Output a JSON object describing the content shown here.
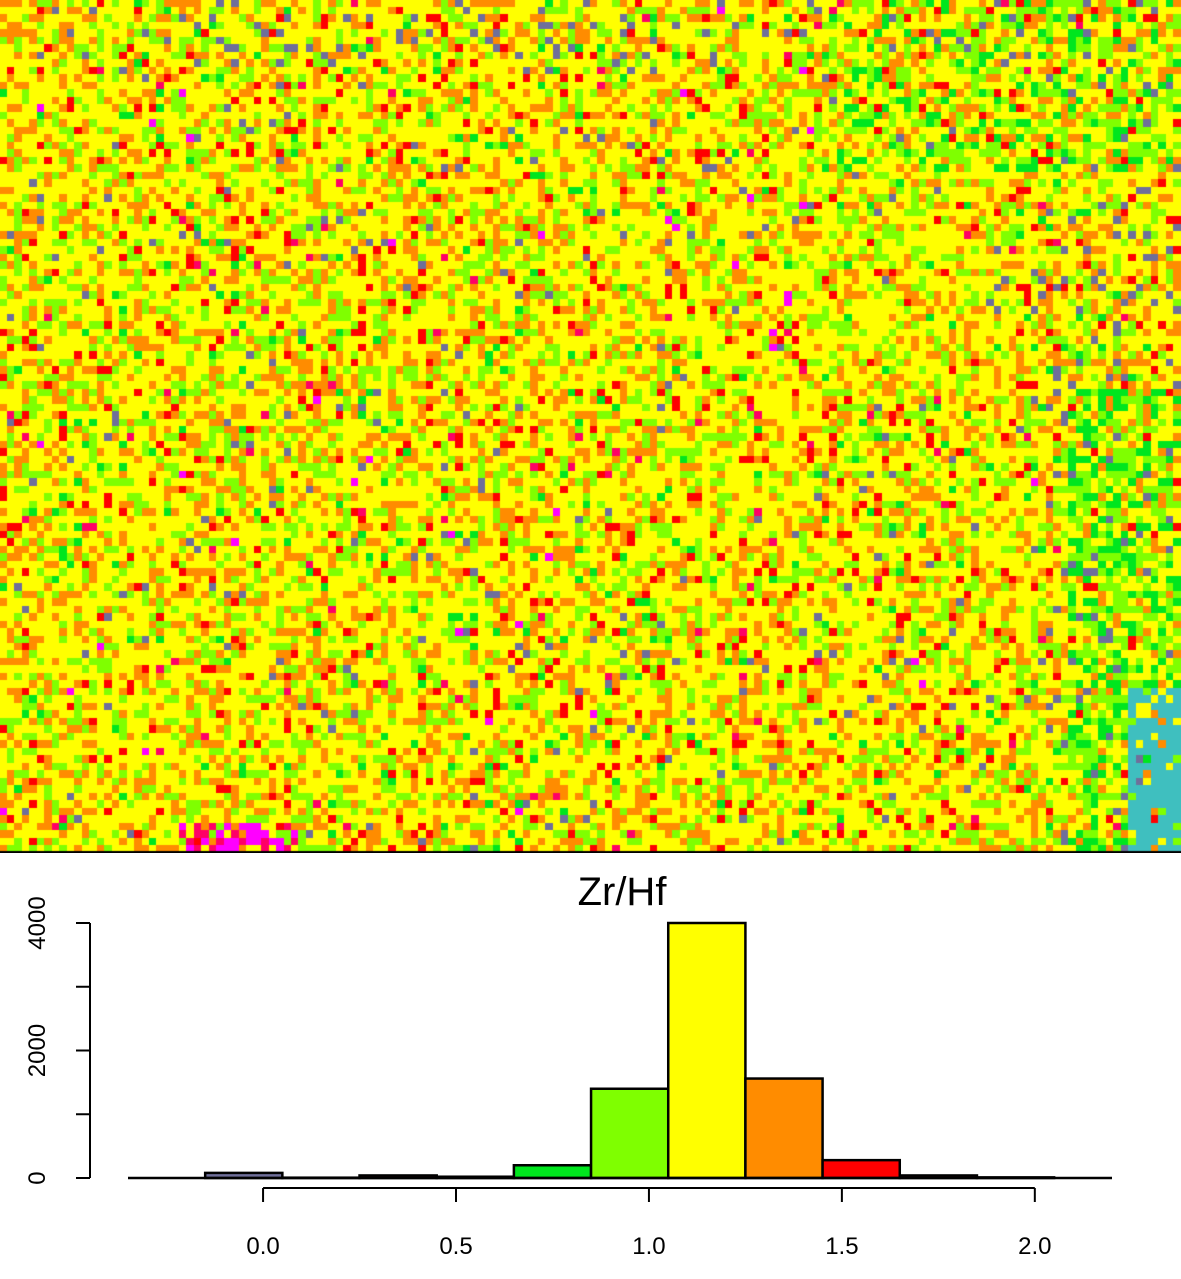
{
  "chart_data": [
    {
      "type": "heatmap",
      "description_value_encoding": "pixel map of Zr/Hf values binned by the same colour classes as the histogram",
      "colors": [
        "#6f6f9a",
        "#ff00ff",
        "#ff0066",
        "#ff0000",
        "#ff8c00",
        "#ffff00",
        "#7fff00",
        "#00e61e",
        "#3fbfbf"
      ],
      "class_weights": {
        "#ffff00": 0.53,
        "#ff8c00": 0.2,
        "#7fff00": 0.18,
        "#ff0000": 0.045,
        "#00e61e": 0.02,
        "#6f6f9a": 0.015,
        "#ff0066": 0.007,
        "#ff00ff": 0.003
      },
      "grid": {
        "cols": 158,
        "rows": 114
      }
    },
    {
      "type": "bar",
      "title": "Zr/Hf",
      "xlabel": "",
      "ylabel": "",
      "xlim": [
        -0.35,
        2.2
      ],
      "ylim": [
        0,
        4000
      ],
      "xticks": [
        "0.0",
        "0.5",
        "1.0",
        "1.5",
        "2.0"
      ],
      "yticks": [
        "0",
        "2000",
        "4000"
      ],
      "bins": [
        {
          "x0": -0.15,
          "x1": 0.05,
          "value": 80,
          "color": "#6f6f9a"
        },
        {
          "x0": 0.05,
          "x1": 0.25,
          "value": 5,
          "color": "#ff00ff"
        },
        {
          "x0": 0.25,
          "x1": 0.45,
          "value": 40,
          "color": "#ff0066"
        },
        {
          "x0": 0.45,
          "x1": 0.65,
          "value": 20,
          "color": "#3fbfbf"
        },
        {
          "x0": 0.65,
          "x1": 0.85,
          "value": 200,
          "color": "#00e61e"
        },
        {
          "x0": 0.85,
          "x1": 1.05,
          "value": 1400,
          "color": "#7fff00"
        },
        {
          "x0": 1.05,
          "x1": 1.25,
          "value": 4000,
          "color": "#ffff00"
        },
        {
          "x0": 1.25,
          "x1": 1.45,
          "value": 1560,
          "color": "#ff8c00"
        },
        {
          "x0": 1.45,
          "x1": 1.65,
          "value": 280,
          "color": "#ff0000"
        },
        {
          "x0": 1.65,
          "x1": 1.85,
          "value": 40,
          "color": "#ff0066"
        },
        {
          "x0": 1.85,
          "x1": 2.05,
          "value": 10,
          "color": "#ff00ff"
        }
      ]
    }
  ]
}
